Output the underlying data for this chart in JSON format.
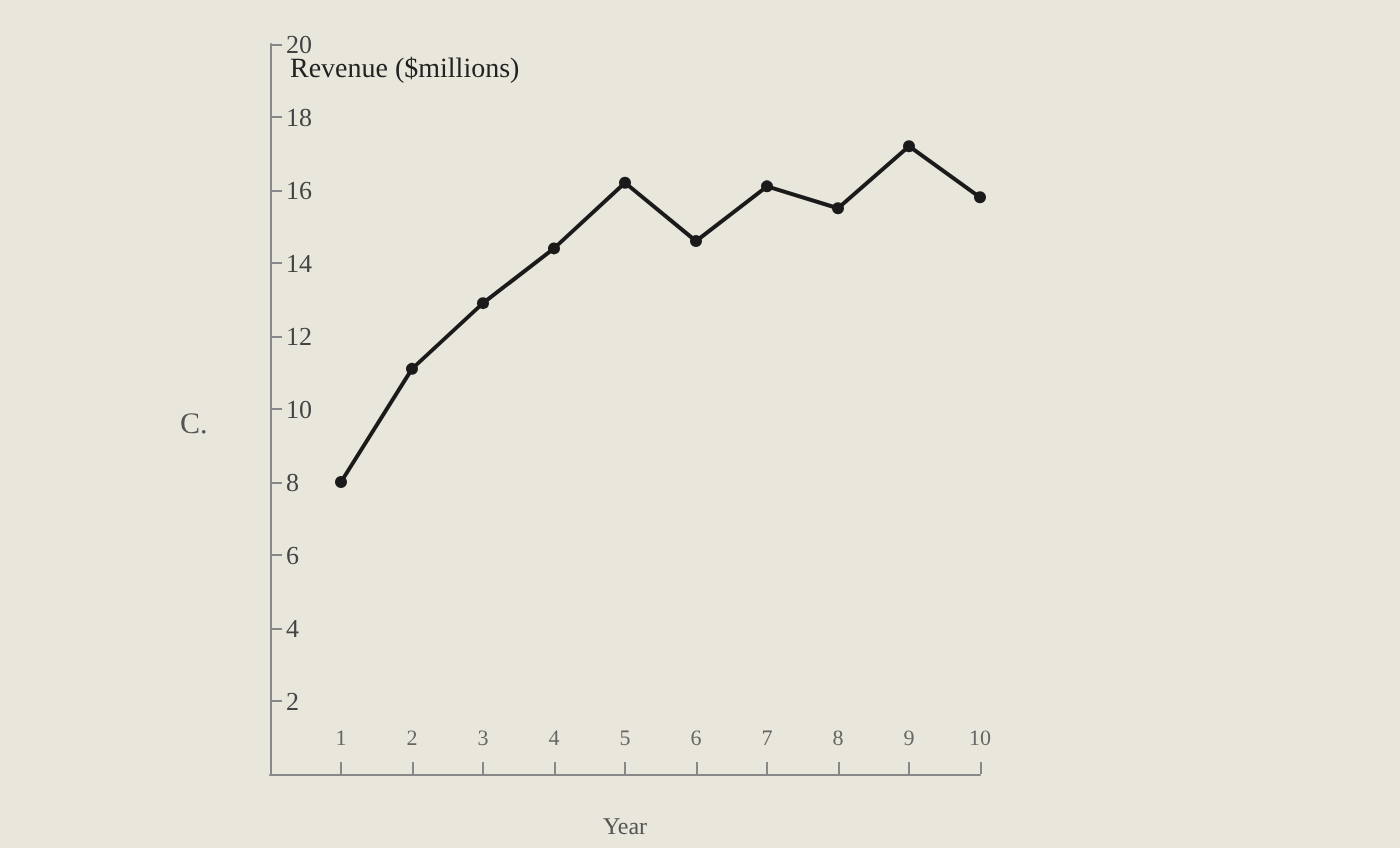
{
  "chart_data": {
    "type": "line",
    "xlabel": "Year",
    "ylabel": "Revenue ($millions)",
    "annotations": [
      "C."
    ],
    "x": [
      1,
      2,
      3,
      4,
      5,
      6,
      7,
      8,
      9,
      10
    ],
    "series": [
      {
        "color": "#1a1a1a",
        "values": [
          8.0,
          11.1,
          12.9,
          14.4,
          16.2,
          14.6,
          16.1,
          15.5,
          17.2,
          15.8
        ]
      }
    ],
    "xlim": [
      0,
      10
    ],
    "xticks": [
      1,
      2,
      3,
      4,
      5,
      6,
      7,
      8,
      9,
      10
    ],
    "ylim": [
      0,
      20
    ],
    "yticks": [
      2,
      4,
      6,
      8,
      10,
      12,
      14,
      16,
      18,
      20
    ],
    "grid": false,
    "marker": "circle",
    "line_style": "solid"
  }
}
